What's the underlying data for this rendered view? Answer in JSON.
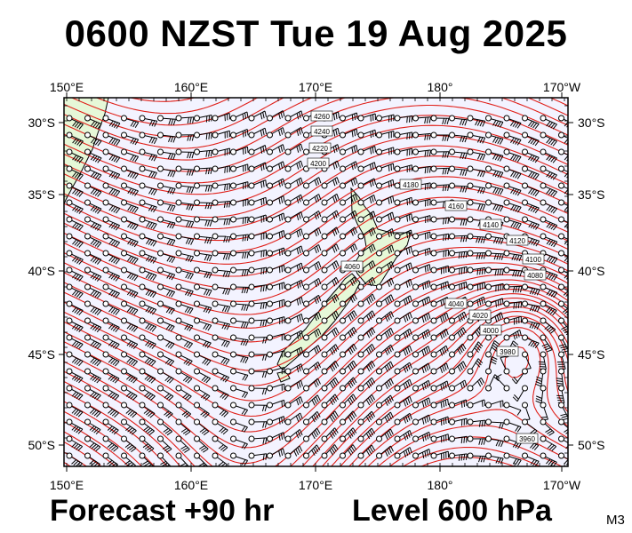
{
  "header": {
    "title": "0600 NZST Tue 19 Aug 2025"
  },
  "footer": {
    "forecast": "Forecast +90 hr",
    "level": "Level 600 hPa",
    "code": "M3"
  },
  "map": {
    "lon_ticks_top": [
      "150°E",
      "160°E",
      "170°E",
      "180°",
      "170°W"
    ],
    "lon_ticks_bottom": [
      "150°E",
      "160°E",
      "170°E",
      "180°",
      "170°W"
    ],
    "lat_ticks_left": [
      "30°S",
      "35°S",
      "40°S",
      "45°S",
      "50°S"
    ],
    "lat_ticks_right": [
      "30°S",
      "35°S",
      "40°S",
      "45°S",
      "50°S"
    ],
    "contour_color": "#e0201a",
    "ocean_color": "#f3f3ff",
    "land_color": "#e6f8d8",
    "contour_labels": [
      "4260",
      "4240",
      "4220",
      "4200",
      "4180",
      "4160",
      "4140",
      "4120",
      "4100",
      "4080",
      "4060",
      "4040",
      "4020",
      "4000",
      "3980",
      "3960"
    ]
  }
}
